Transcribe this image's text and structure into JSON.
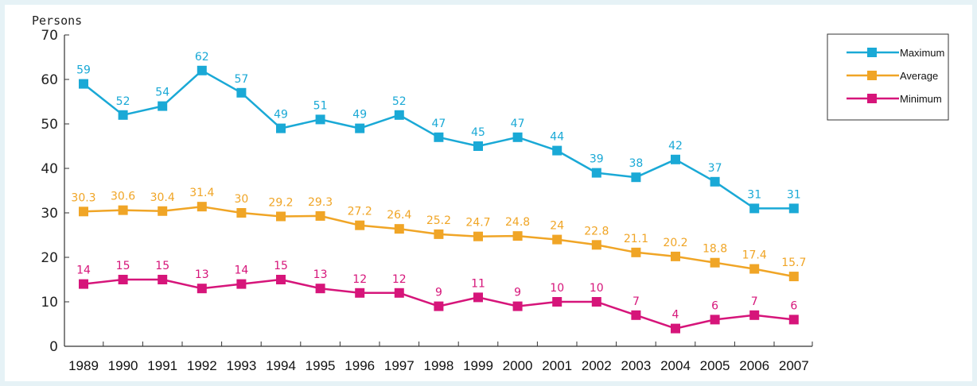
{
  "chart_data": {
    "type": "line",
    "ylabel": "Persons",
    "ylim": [
      0,
      70
    ],
    "yticks": [
      0,
      10,
      20,
      30,
      40,
      50,
      60,
      70
    ],
    "categories": [
      "1989",
      "1990",
      "1991",
      "1992",
      "1993",
      "1994",
      "1995",
      "1996",
      "1997",
      "1998",
      "1999",
      "2000",
      "2001",
      "2002",
      "2003",
      "2004",
      "2005",
      "2006",
      "2007"
    ],
    "series": [
      {
        "name": "Maximum",
        "color": "#1aa9d6",
        "values": [
          59,
          52,
          54,
          62,
          57,
          49,
          51,
          49,
          52,
          47,
          45,
          47,
          44,
          39,
          38,
          42,
          37,
          31,
          31
        ],
        "labels": [
          "59",
          "52",
          "54",
          "62",
          "57",
          "49",
          "51",
          "49",
          "52",
          "47",
          "45",
          "47",
          "44",
          "39",
          "38",
          "42",
          "37",
          "31",
          "31"
        ]
      },
      {
        "name": "Average",
        "color": "#f0a526",
        "values": [
          30.3,
          30.6,
          30.4,
          31.4,
          30,
          29.2,
          29.3,
          27.2,
          26.4,
          25.2,
          24.7,
          24.8,
          24,
          22.8,
          21.1,
          20.2,
          18.8,
          17.4,
          15.7
        ],
        "labels": [
          "30.3",
          "30.6",
          "30.4",
          "31.4",
          "30",
          "29.2",
          "29.3",
          "27.2",
          "26.4",
          "25.2",
          "24.7",
          "24.8",
          "24",
          "22.8",
          "21.1",
          "20.2",
          "18.8",
          "17.4",
          "15.7"
        ]
      },
      {
        "name": "Minimum",
        "color": "#d6157a",
        "values": [
          14,
          15,
          15,
          13,
          14,
          15,
          13,
          12,
          12,
          9,
          11,
          9,
          10,
          10,
          7,
          4,
          6,
          7,
          6
        ],
        "labels": [
          "14",
          "15",
          "15",
          "13",
          "14",
          "15",
          "13",
          "12",
          "12",
          "9",
          "11",
          "9",
          "10",
          "10",
          "7",
          "4",
          "6",
          "7",
          "6"
        ]
      }
    ],
    "legend": "top-right",
    "grid": false
  }
}
